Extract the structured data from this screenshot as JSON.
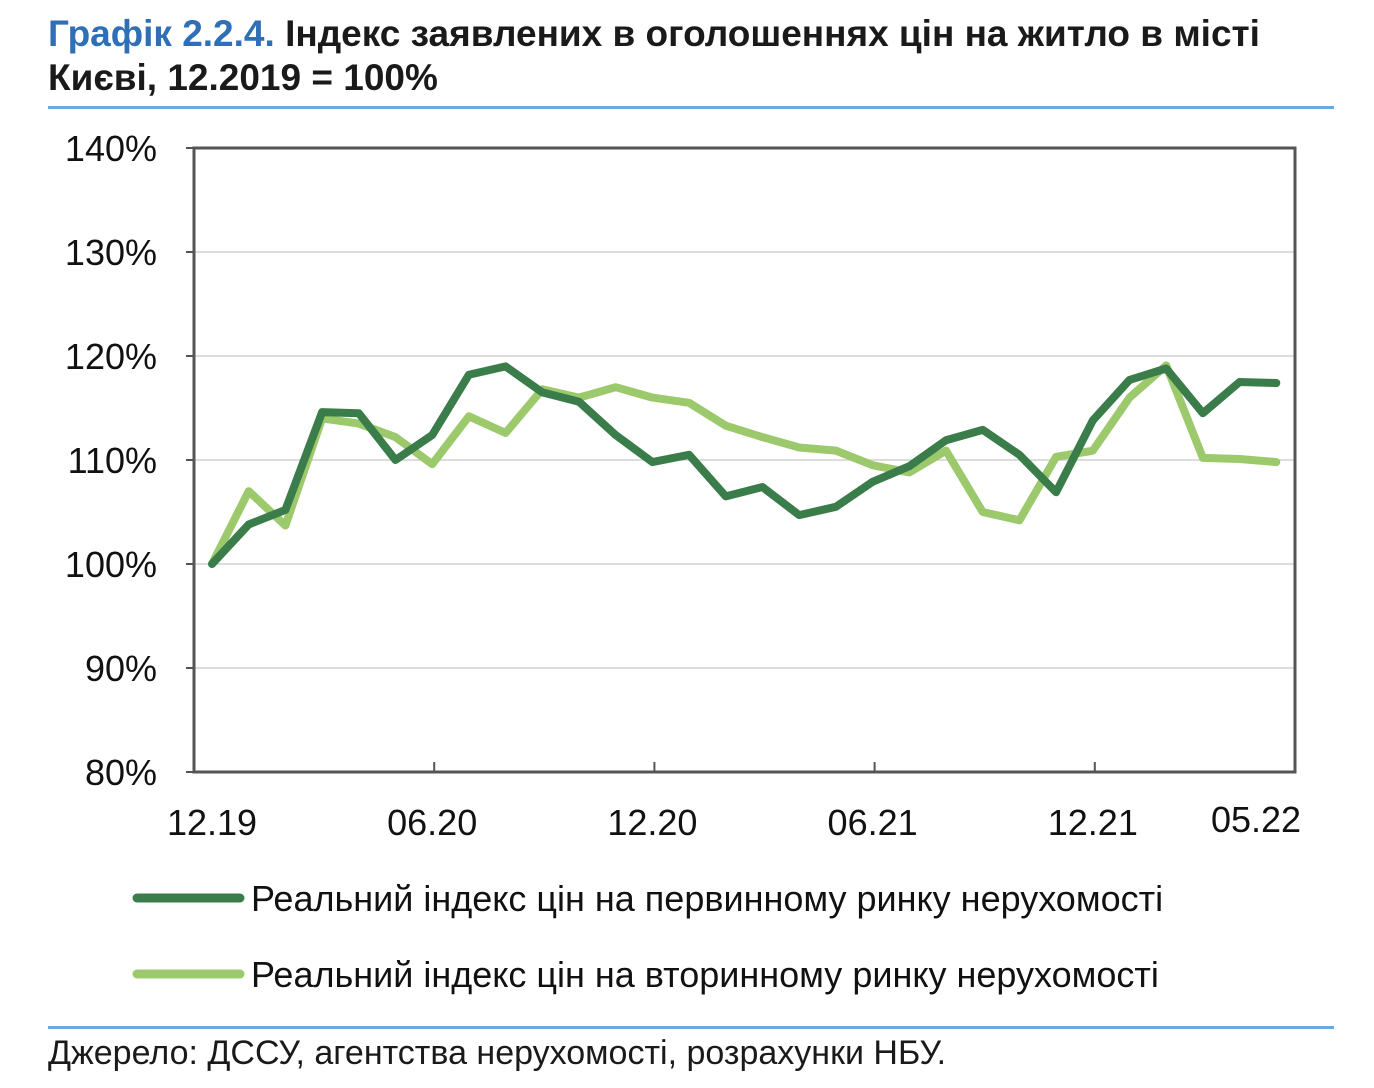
{
  "title": {
    "number": "Графік 2.2.4.",
    "text": "Індекс заявлених в оголошеннях цін на житло в місті Києві, 12.2019 = 100%"
  },
  "source": "Джерело: ДССУ, агентства нерухомості, розрахунки НБУ.",
  "chart_data": {
    "type": "line",
    "ylim": [
      80,
      140
    ],
    "yticks": [
      "80%",
      "90%",
      "100%",
      "110%",
      "120%",
      "130%",
      "140%"
    ],
    "ytick_values": [
      80,
      90,
      100,
      110,
      120,
      130,
      140
    ],
    "xtick_labels": [
      "12.19",
      "06.20",
      "12.20",
      "06.21",
      "12.21",
      "05.22"
    ],
    "xtick_index": [
      0,
      6,
      12,
      18,
      24,
      29
    ],
    "grid": true,
    "legend_placement": "bottom",
    "series": [
      {
        "name": "Реальний індекс цін на первинному ринку нерухомості",
        "color": "#3a7d4a",
        "values": [
          100,
          103.8,
          105.2,
          114.6,
          114.5,
          110,
          112.4,
          118.2,
          119,
          116.5,
          115.6,
          112.4,
          109.8,
          110.5,
          106.5,
          107.4,
          104.7,
          105.5,
          107.9,
          109.4,
          111.9,
          112.9,
          110.5,
          106.9,
          113.8,
          117.7,
          118.8,
          114.5,
          117.5,
          117.4
        ]
      },
      {
        "name": "Реальний індекс цін на вторинному ринку нерухомості",
        "color": "#9bc96b",
        "values": [
          100,
          107,
          103.7,
          114,
          113.5,
          112.2,
          109.6,
          114.2,
          112.6,
          116.8,
          116,
          117,
          116,
          115.5,
          113.3,
          112.2,
          111.2,
          110.9,
          109.5,
          108.8,
          110.9,
          105,
          104.2,
          110.3,
          110.9,
          116,
          119.1,
          110.2,
          110.1,
          109.8
        ]
      }
    ]
  }
}
